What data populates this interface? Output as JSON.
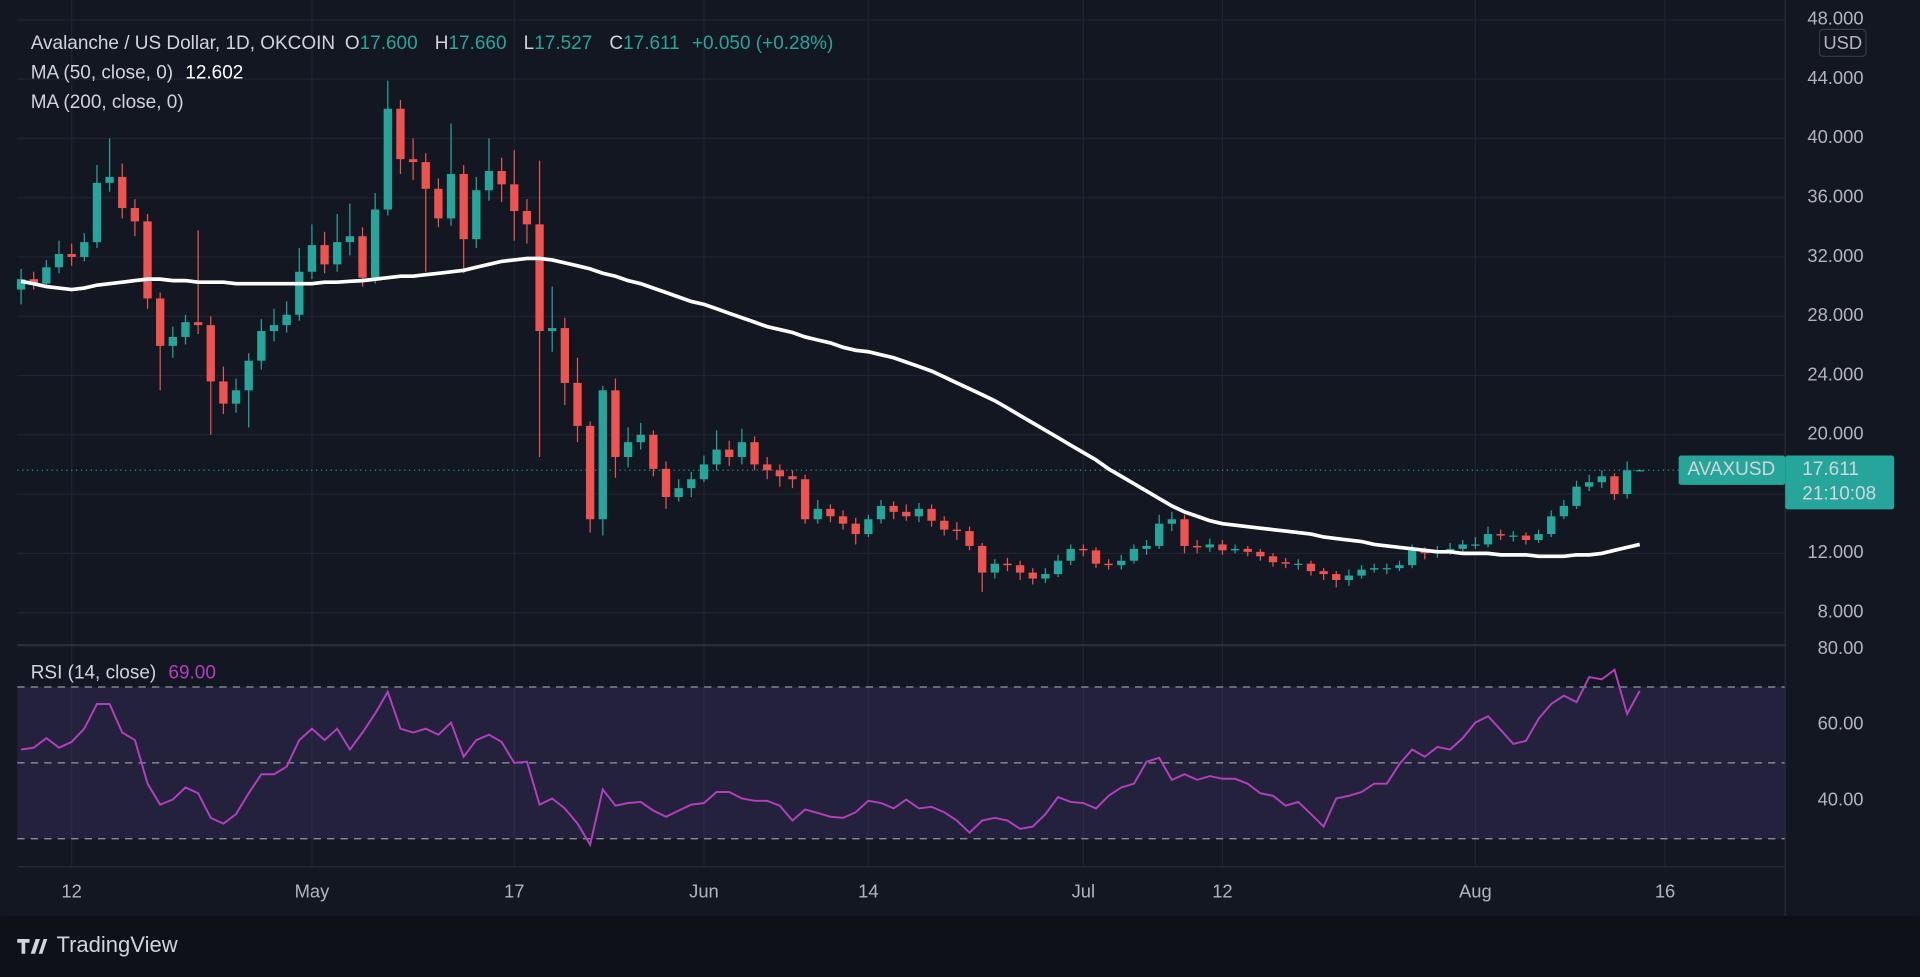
{
  "chart_data": {
    "type": "candlestick",
    "title": "Avalanche / US Dollar, 1D, OKCOIN",
    "ohlc": [
      {
        "key": "O",
        "value": "17.600"
      },
      {
        "key": "H",
        "value": "17.660"
      },
      {
        "key": "L",
        "value": "17.527"
      },
      {
        "key": "C",
        "value": "17.611"
      }
    ],
    "change": "+0.050 (+0.28%)",
    "open": [
      29.8,
      30.5,
      30.2,
      31.3,
      32.2,
      32.0,
      33.0,
      37.0,
      37.4,
      35.3,
      34.4,
      29.2,
      26.0,
      26.6,
      27.6,
      27.4,
      23.6,
      22.1,
      23.0,
      25.0,
      27.0,
      27.4,
      28.1,
      31.0,
      32.8,
      31.5,
      33.0,
      33.4,
      30.6,
      35.2,
      42.0,
      38.6,
      38.4,
      36.6,
      34.6,
      37.6,
      33.2,
      36.5,
      37.8,
      36.9,
      35.1,
      34.2,
      27.0,
      27.2,
      23.5,
      20.6,
      14.3,
      23.0,
      18.5,
      19.5,
      20.0,
      17.7,
      15.8,
      16.4,
      17.0,
      18.0,
      19.0,
      18.5,
      19.5,
      18.0,
      17.6,
      17.2,
      17.0,
      14.3,
      15.0,
      14.5,
      14.0,
      13.3,
      14.3,
      15.2,
      14.8,
      14.5,
      15.0,
      14.2,
      13.6,
      13.5,
      12.5,
      10.7,
      11.3,
      11.2,
      10.7,
      10.3,
      10.6,
      11.5,
      12.3,
      12.2,
      11.3,
      11.2,
      11.5,
      12.3,
      12.5,
      14.0,
      14.3,
      12.5,
      12.4,
      12.6,
      12.2,
      12.3,
      12.1,
      11.8,
      11.4,
      11.3,
      11.3,
      10.8,
      10.6,
      10.2,
      10.5,
      10.9,
      11.0,
      11.0,
      11.2,
      12.2,
      12.0,
      12.1,
      12.3,
      12.6,
      12.6,
      13.3,
      13.2,
      13.2,
      12.9,
      13.3,
      14.5,
      15.2,
      16.5,
      16.8,
      17.2,
      16.0,
      17.6
    ],
    "high": [
      31.2,
      31.0,
      31.8,
      33.1,
      32.9,
      33.6,
      38.2,
      40.0,
      38.3,
      35.9,
      34.9,
      29.6,
      27.3,
      28.1,
      33.8,
      28.0,
      24.6,
      23.8,
      25.5,
      27.8,
      28.5,
      29.0,
      32.6,
      34.2,
      33.7,
      34.9,
      35.6,
      34.0,
      36.3,
      43.9,
      42.6,
      40.0,
      39.0,
      37.3,
      41.0,
      38.2,
      37.4,
      40.0,
      38.7,
      39.2,
      35.9,
      38.5,
      30.0,
      27.9,
      25.2,
      20.9,
      23.3,
      23.8,
      20.5,
      20.8,
      20.3,
      18.2,
      17.0,
      17.5,
      18.6,
      20.3,
      19.6,
      20.4,
      19.9,
      18.5,
      18.0,
      17.6,
      17.3,
      15.6,
      15.3,
      14.9,
      14.4,
      14.6,
      15.6,
      15.5,
      15.3,
      15.4,
      15.3,
      14.5,
      14.1,
      13.8,
      12.7,
      11.6,
      11.7,
      11.5,
      11.0,
      11.0,
      11.9,
      12.6,
      12.6,
      12.4,
      11.6,
      11.9,
      12.6,
      12.9,
      14.6,
      14.8,
      14.6,
      12.9,
      13.0,
      12.9,
      12.6,
      12.5,
      12.3,
      12.0,
      11.7,
      11.6,
      11.5,
      11.0,
      10.8,
      10.9,
      11.2,
      11.3,
      11.3,
      11.5,
      12.6,
      12.4,
      12.5,
      12.7,
      12.9,
      13.1,
      13.8,
      13.6,
      13.5,
      13.4,
      13.6,
      14.9,
      15.6,
      16.9,
      17.3,
      17.6,
      17.4,
      18.2,
      17.66
    ],
    "low": [
      28.8,
      29.8,
      29.9,
      30.9,
      31.4,
      31.7,
      32.6,
      36.4,
      34.6,
      33.4,
      28.5,
      23.0,
      25.2,
      26.1,
      26.8,
      20.0,
      21.4,
      21.5,
      20.5,
      24.4,
      26.3,
      26.9,
      27.7,
      30.5,
      30.9,
      31.0,
      32.1,
      30.0,
      30.2,
      34.8,
      37.6,
      37.2,
      31.0,
      34.0,
      34.1,
      30.9,
      32.6,
      35.8,
      35.7,
      33.1,
      32.9,
      18.5,
      25.6,
      22.0,
      19.5,
      13.4,
      13.2,
      17.1,
      17.8,
      19.0,
      17.2,
      15.0,
      15.5,
      15.8,
      16.8,
      17.6,
      17.9,
      18.0,
      17.6,
      17.0,
      16.5,
      16.4,
      14.0,
      14.0,
      14.1,
      13.6,
      12.6,
      13.1,
      14.0,
      14.3,
      14.2,
      14.1,
      13.8,
      13.2,
      12.9,
      12.2,
      9.4,
      10.3,
      10.8,
      10.2,
      9.9,
      10.0,
      10.4,
      11.2,
      11.8,
      11.0,
      10.9,
      10.9,
      11.3,
      11.9,
      12.3,
      13.5,
      12.0,
      12.0,
      12.1,
      11.9,
      12.0,
      11.8,
      11.5,
      11.1,
      11.0,
      10.9,
      10.5,
      10.2,
      9.7,
      9.8,
      10.3,
      10.7,
      10.6,
      10.8,
      11.0,
      11.6,
      11.7,
      11.9,
      12.1,
      12.3,
      12.4,
      12.9,
      12.8,
      12.6,
      12.7,
      13.1,
      14.3,
      15.0,
      16.2,
      16.4,
      15.6,
      15.7,
      17.527
    ],
    "close": [
      30.5,
      30.2,
      31.3,
      32.2,
      32.0,
      33.0,
      37.0,
      37.4,
      35.3,
      34.4,
      29.2,
      26.0,
      26.6,
      27.6,
      27.4,
      23.6,
      22.1,
      23.0,
      25.0,
      27.0,
      27.4,
      28.1,
      31.0,
      32.8,
      31.5,
      33.0,
      33.4,
      30.6,
      35.2,
      42.0,
      38.6,
      38.4,
      36.6,
      34.6,
      37.6,
      33.2,
      36.5,
      37.8,
      36.9,
      35.1,
      34.2,
      27.0,
      27.2,
      23.5,
      20.6,
      14.3,
      23.0,
      18.5,
      19.5,
      20.0,
      17.7,
      15.8,
      16.4,
      17.0,
      18.0,
      19.0,
      18.5,
      19.5,
      18.0,
      17.6,
      17.2,
      17.0,
      14.3,
      15.0,
      14.5,
      14.0,
      13.3,
      14.3,
      15.2,
      14.8,
      14.5,
      15.0,
      14.2,
      13.6,
      13.5,
      12.5,
      10.7,
      11.3,
      11.2,
      10.7,
      10.3,
      10.6,
      11.5,
      12.3,
      12.2,
      11.3,
      11.2,
      11.5,
      12.3,
      12.5,
      14.0,
      14.3,
      12.5,
      12.4,
      12.6,
      12.2,
      12.3,
      12.1,
      11.8,
      11.4,
      11.3,
      11.3,
      10.8,
      10.6,
      10.2,
      10.5,
      10.9,
      11.0,
      11.0,
      11.2,
      12.2,
      12.0,
      12.1,
      12.3,
      12.6,
      12.6,
      13.3,
      13.2,
      13.2,
      12.9,
      13.3,
      14.5,
      15.2,
      16.5,
      16.8,
      17.2,
      16.0,
      17.6,
      17.611
    ],
    "up_color": "#26a69a",
    "down_color": "#ef5350",
    "grid": true,
    "xlim": [
      -0.3,
      139.5
    ],
    "xticks": [
      {
        "value": 4,
        "label": "12"
      },
      {
        "value": 23,
        "label": "May"
      },
      {
        "value": 39,
        "label": "17"
      },
      {
        "value": 54,
        "label": "Jun"
      },
      {
        "value": 67,
        "label": "14"
      },
      {
        "value": 84,
        "label": "Jul"
      },
      {
        "value": 95,
        "label": "12"
      },
      {
        "value": 115,
        "label": "Aug"
      },
      {
        "value": 130,
        "label": "16"
      }
    ],
    "ylim": [
      5.8,
      48.1
    ],
    "yticks": [
      {
        "value": 8,
        "label": "8.000"
      },
      {
        "value": 12,
        "label": "12.000"
      },
      {
        "value": 16,
        "label": "16.000"
      },
      {
        "value": 20,
        "label": "20.000"
      },
      {
        "value": 24,
        "label": "24.000"
      },
      {
        "value": 28,
        "label": "28.000"
      },
      {
        "value": 32,
        "label": "32.000"
      },
      {
        "value": 36,
        "label": "36.000"
      },
      {
        "value": 40,
        "label": "40.000"
      },
      {
        "value": 44,
        "label": "44.000"
      },
      {
        "value": 48,
        "label": "48.000"
      }
    ],
    "currency": "USD",
    "ticker": "AVAXUSD",
    "countdown": "21:10:08",
    "ma": {
      "type": "line",
      "name": "MA (50, close, 0)",
      "value_label": "12.602",
      "color": "#ffffff",
      "values": [
        30.35,
        30.2,
        30.0,
        29.9,
        29.8,
        29.9,
        30.1,
        30.2,
        30.3,
        30.4,
        30.5,
        30.5,
        30.4,
        30.4,
        30.3,
        30.3,
        30.3,
        30.2,
        30.2,
        30.2,
        30.2,
        30.2,
        30.2,
        30.2,
        30.3,
        30.3,
        30.35,
        30.4,
        30.5,
        30.6,
        30.7,
        30.7,
        30.8,
        30.9,
        31.0,
        31.1,
        31.3,
        31.5,
        31.7,
        31.8,
        31.9,
        31.9,
        31.8,
        31.6,
        31.4,
        31.2,
        30.9,
        30.7,
        30.4,
        30.2,
        29.9,
        29.6,
        29.3,
        29.0,
        28.8,
        28.5,
        28.2,
        27.9,
        27.6,
        27.3,
        27.1,
        26.9,
        26.6,
        26.4,
        26.2,
        25.9,
        25.7,
        25.6,
        25.4,
        25.2,
        24.9,
        24.6,
        24.3,
        23.9,
        23.5,
        23.1,
        22.7,
        22.3,
        21.8,
        21.3,
        20.8,
        20.3,
        19.8,
        19.3,
        18.8,
        18.3,
        17.7,
        17.2,
        16.7,
        16.2,
        15.7,
        15.2,
        14.8,
        14.5,
        14.2,
        14.0,
        13.9,
        13.8,
        13.7,
        13.6,
        13.5,
        13.4,
        13.3,
        13.1,
        13.0,
        12.9,
        12.8,
        12.6,
        12.5,
        12.4,
        12.3,
        12.2,
        12.1,
        12.1,
        12.0,
        12.0,
        12.0,
        11.9,
        11.9,
        11.9,
        11.8,
        11.8,
        11.8,
        11.9,
        11.9,
        12.0,
        12.2,
        12.4,
        12.602
      ]
    },
    "ma2": {
      "name": "MA (200, close, 0)"
    },
    "rsi": {
      "type": "line",
      "name": "RSI (14, close)",
      "value_label": "69.00",
      "color": "#b33fbf",
      "band_color": "#7e57c2",
      "ylim": [
        22.6,
        81
      ],
      "band": [
        30,
        70
      ],
      "midline": 50,
      "yticks": [
        {
          "value": 40,
          "label": "40.00"
        },
        {
          "value": 60,
          "label": "60.00"
        },
        {
          "value": 80,
          "label": "80.00"
        }
      ],
      "values": [
        53.5,
        54,
        56.5,
        54,
        55.5,
        59,
        65.5,
        65.5,
        58,
        56,
        44.5,
        39,
        40.3,
        43.5,
        42,
        35.5,
        34,
        36.5,
        42,
        47,
        47,
        49,
        56,
        59,
        56,
        59,
        53.5,
        58,
        63,
        68.7,
        59,
        58,
        59,
        57.4,
        60.6,
        51.6,
        56,
        57.4,
        55.5,
        50,
        50.3,
        39,
        40.6,
        38,
        34,
        28.4,
        43,
        38.7,
        39.4,
        39.7,
        37.4,
        35.8,
        37.4,
        39,
        39.4,
        42.3,
        42.3,
        40.6,
        40,
        40,
        38.7,
        34.8,
        37.7,
        36.8,
        35.8,
        35.5,
        37,
        40,
        39.4,
        38,
        40.3,
        38,
        38.4,
        37,
        34.8,
        31.6,
        34.8,
        35.5,
        34.8,
        32.6,
        33.2,
        36.5,
        41,
        39.7,
        39.4,
        38,
        41.3,
        43.5,
        44.5,
        50.3,
        51.3,
        45.5,
        47,
        45.5,
        46.5,
        45.8,
        45.8,
        44.5,
        42,
        41.3,
        38.7,
        39.7,
        36.5,
        33.2,
        40.6,
        41.3,
        42.3,
        44.5,
        44.5,
        49.7,
        53.5,
        51.6,
        54.2,
        53.5,
        56.5,
        60.6,
        62.3,
        58.7,
        55,
        55.8,
        61.6,
        65.5,
        67.7,
        66,
        72.6,
        72,
        74.5,
        62.9,
        69
      ]
    }
  },
  "brand": "TradingView"
}
